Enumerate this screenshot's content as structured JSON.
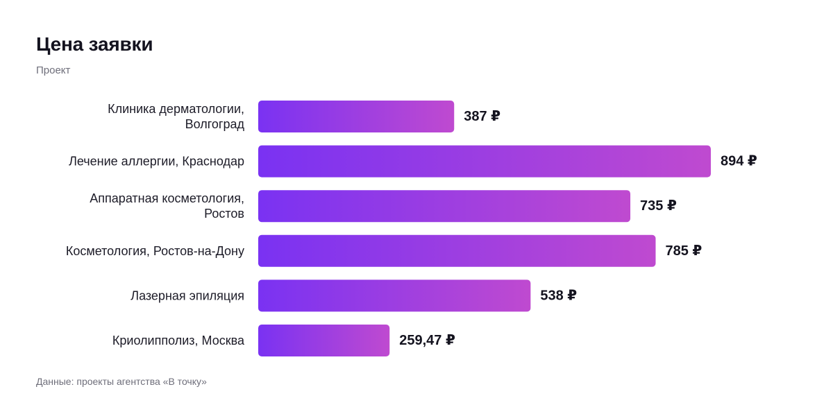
{
  "header": {
    "title": "Цена заявки",
    "subtitle": "Проект"
  },
  "footer": {
    "source": "Данные: проекты агентства «В точку»"
  },
  "colors": {
    "bar_gradient_start": "#7a32f2",
    "bar_gradient_end": "#bf4ad0",
    "text": "#14131f",
    "muted": "#6e6e7a"
  },
  "chart_data": {
    "type": "bar",
    "orientation": "horizontal",
    "title": "Цена заявки",
    "subtitle": "Проект",
    "categories": [
      [
        "Клиника дерматологии,",
        "Волгоград"
      ],
      [
        "Лечение аллергии, Краснодар"
      ],
      [
        "Аппаратная косметология,",
        "Ростов"
      ],
      [
        "Косметология, Ростов-на-Дону"
      ],
      [
        "Лазерная эпиляция"
      ],
      [
        "Криолипполиз, Москва"
      ]
    ],
    "values": [
      387,
      894,
      735,
      785,
      538,
      259.47
    ],
    "value_labels": [
      "387 ₽",
      "894 ₽",
      "735 ₽",
      "785 ₽",
      "538 ₽",
      "259,47 ₽"
    ],
    "xlim": [
      0,
      894
    ],
    "grid": false,
    "legend": "none"
  }
}
